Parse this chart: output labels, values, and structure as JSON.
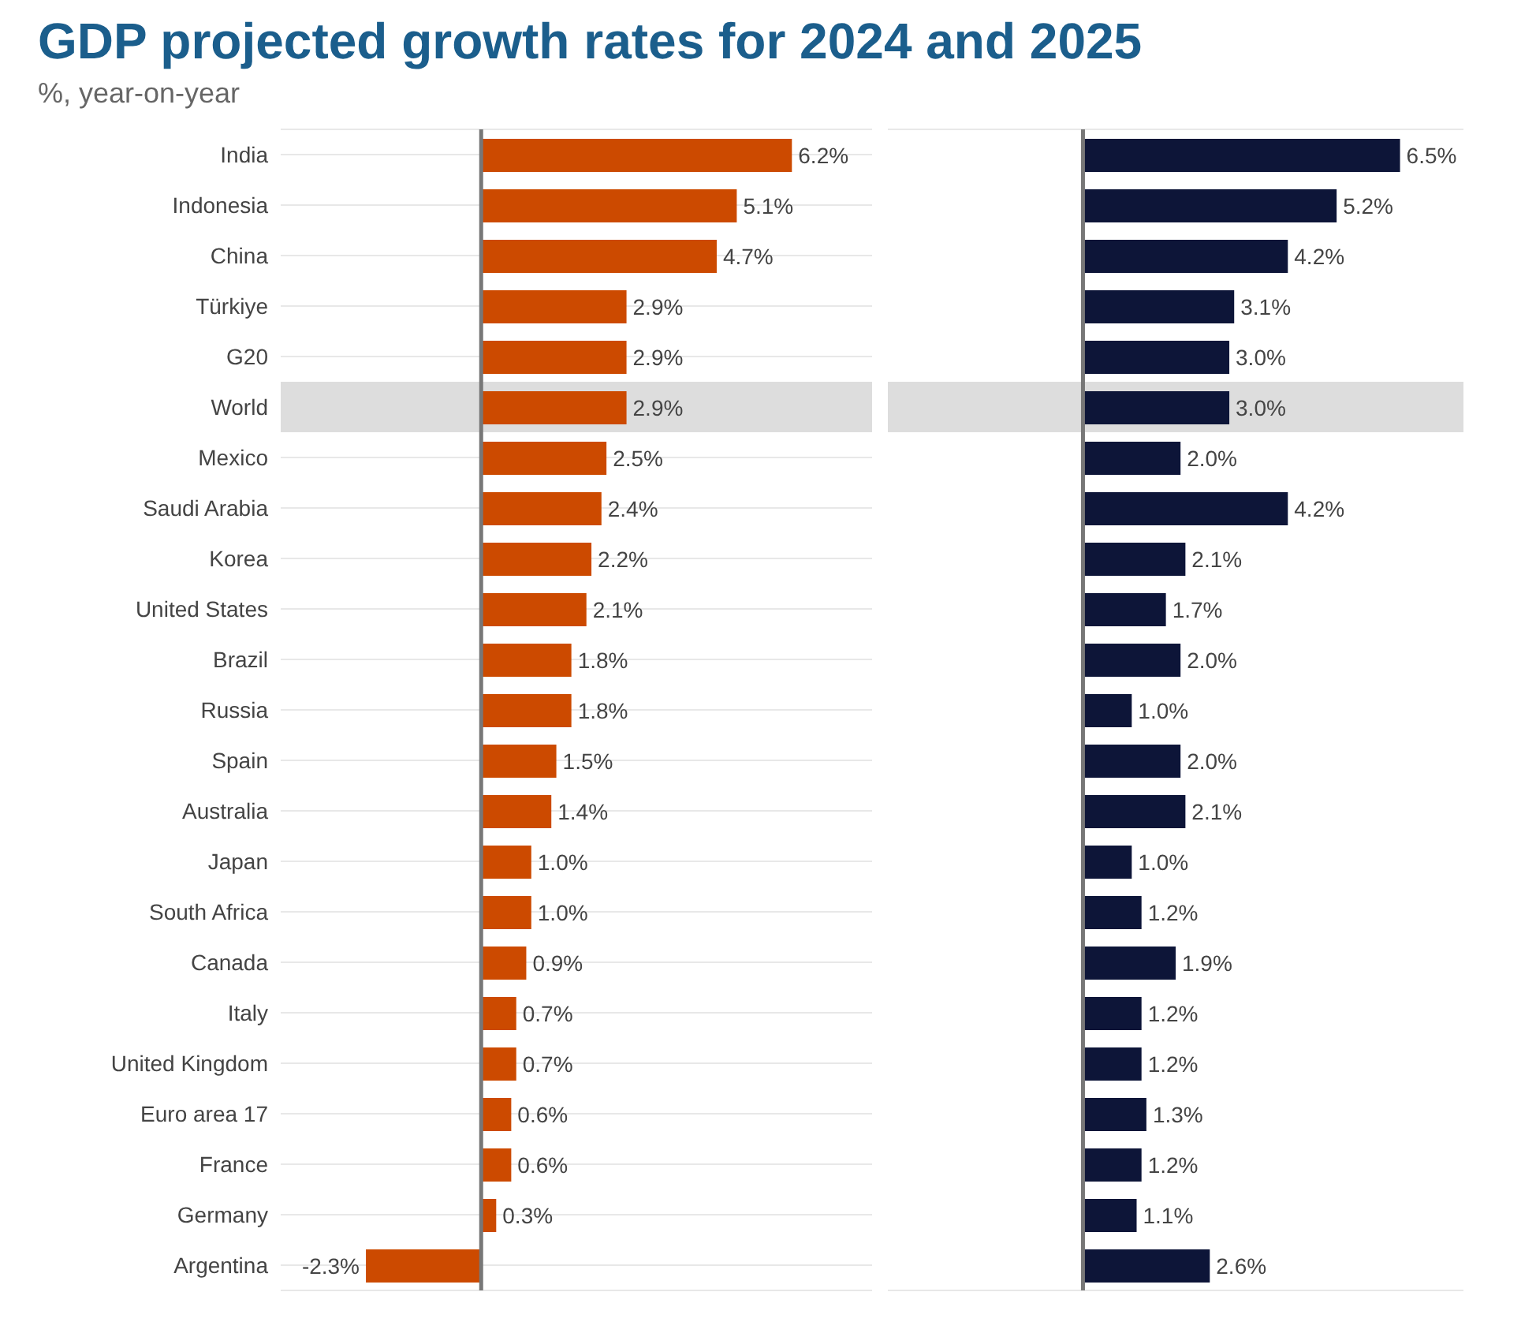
{
  "chart_data": [
    {
      "type": "bar",
      "orientation": "horizontal",
      "title": "GDP projected growth rates for 2024 and 2025",
      "subtitle": "%, year-on-year",
      "categories": [
        "India",
        "Indonesia",
        "China",
        "Türkiye",
        "G20",
        "World",
        "Mexico",
        "Saudi Arabia",
        "Korea",
        "United States",
        "Brazil",
        "Russia",
        "Spain",
        "Australia",
        "Japan",
        "South Africa",
        "Canada",
        "Italy",
        "United Kingdom",
        "Euro area 17",
        "France",
        "Germany",
        "Argentina"
      ],
      "values": [
        6.2,
        5.1,
        4.7,
        2.9,
        2.9,
        2.9,
        2.5,
        2.4,
        2.2,
        2.1,
        1.8,
        1.8,
        1.5,
        1.4,
        1.0,
        1.0,
        0.9,
        0.7,
        0.7,
        0.6,
        0.6,
        0.3,
        -2.3
      ],
      "value_labels": [
        "6.2%",
        "5.1%",
        "4.7%",
        "2.9%",
        "2.9%",
        "2.9%",
        "2.5%",
        "2.4%",
        "2.2%",
        "2.1%",
        "1.8%",
        "1.8%",
        "1.5%",
        "1.4%",
        "1.0%",
        "1.0%",
        "0.9%",
        "0.7%",
        "0.7%",
        "0.6%",
        "0.6%",
        "0.3%",
        "-2.3%"
      ],
      "color": "#cc4a00",
      "xlim": [
        -4,
        7.8
      ],
      "tick_labels": "y",
      "grid": "y",
      "ref_lines": [
        {
          "axis": "x",
          "value": 0,
          "color": "#777777"
        }
      ],
      "bands": [
        {
          "axis": "y",
          "from": "World",
          "to": "World",
          "color": "#dddddd"
        }
      ]
    },
    {
      "type": "bar",
      "orientation": "horizontal",
      "categories": [
        "India",
        "Indonesia",
        "China",
        "Türkiye",
        "G20",
        "World",
        "Mexico",
        "Saudi Arabia",
        "Korea",
        "United States",
        "Brazil",
        "Russia",
        "Spain",
        "Australia",
        "Japan",
        "South Africa",
        "Canada",
        "Italy",
        "United Kingdom",
        "Euro area 17",
        "France",
        "Germany",
        "Argentina"
      ],
      "values": [
        6.5,
        5.2,
        4.2,
        3.1,
        3.0,
        3.0,
        2.0,
        4.2,
        2.1,
        1.7,
        2.0,
        1.0,
        2.0,
        2.1,
        1.0,
        1.2,
        1.9,
        1.2,
        1.2,
        1.3,
        1.2,
        1.1,
        2.6
      ],
      "value_labels": [
        "6.5%",
        "5.2%",
        "4.2%",
        "3.1%",
        "3.0%",
        "3.0%",
        "2.0%",
        "4.2%",
        "2.1%",
        "1.7%",
        "2.0%",
        "1.0%",
        "2.0%",
        "2.1%",
        "1.0%",
        "1.2%",
        "1.9%",
        "1.2%",
        "1.2%",
        "1.3%",
        "1.2%",
        "1.1%",
        "2.6%"
      ],
      "color": "#0d1538",
      "xlim": [
        -4,
        7.8
      ],
      "tick_labels": false,
      "grid": "y",
      "ref_lines": [
        {
          "axis": "x",
          "value": 0,
          "color": "#777777"
        }
      ],
      "bands": [
        {
          "axis": "y",
          "from": "World",
          "to": "World",
          "color": "#dddddd"
        }
      ]
    }
  ]
}
